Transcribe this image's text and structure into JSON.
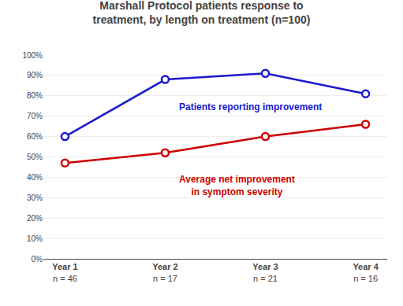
{
  "chart_data": {
    "type": "line",
    "title": "Marshall Protocol patients response to\ntreatment, by length on treatment (n=100)",
    "categories": [
      "Year 1",
      "Year 2",
      "Year 3",
      "Year 4"
    ],
    "category_sublabels": [
      "n = 46",
      "n = 17",
      "n = 21",
      "n = 16"
    ],
    "series": [
      {
        "color": "#1a1acc",
        "values": [
          0.6,
          0.88,
          0.91,
          0.81
        ]
      },
      {
        "color": "#cc0000",
        "values": [
          0.47,
          0.52,
          0.6,
          0.66
        ]
      }
    ],
    "annotations": [
      {
        "text": "Patients reporting improvement",
        "color": "#1a1acc"
      },
      {
        "text": "Average net improvement\nin symptom severity",
        "color": "#cc0000"
      }
    ],
    "marker": "circle",
    "ylim": [
      0,
      1.0
    ],
    "yticks": [
      {
        "value": 0,
        "label": "0%"
      },
      {
        "value": 0.1,
        "label": "10%"
      },
      {
        "value": 0.2,
        "label": "20%"
      },
      {
        "value": 0.3,
        "label": "30%"
      },
      {
        "value": 0.4,
        "label": "40%"
      },
      {
        "value": 0.5,
        "label": "50%"
      },
      {
        "value": 0.6,
        "label": "60%"
      },
      {
        "value": 0.7,
        "label": "70%"
      },
      {
        "value": 0.8,
        "label": "80%"
      },
      {
        "value": 0.9,
        "label": "90%"
      },
      {
        "value": 1.0,
        "label": "100%"
      }
    ],
    "grid": true
  }
}
